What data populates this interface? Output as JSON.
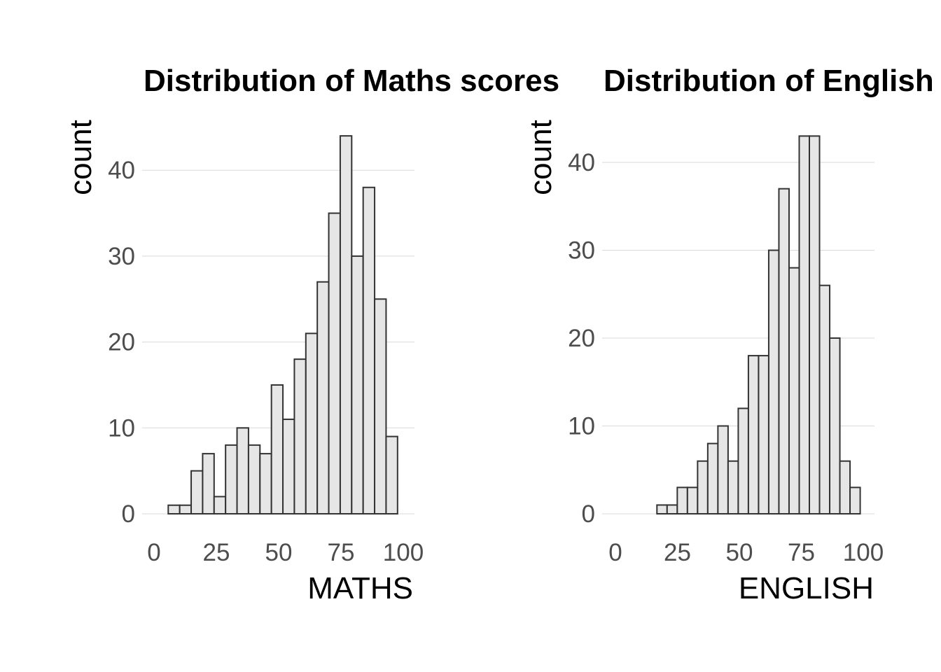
{
  "chart_data": [
    {
      "type": "bar",
      "title": "Distribution of Maths scores",
      "xlabel": "MATHS",
      "ylabel": "count",
      "xlim": [
        0,
        100
      ],
      "ylim": [
        0,
        45
      ],
      "x_ticks": [
        0,
        25,
        50,
        75,
        100
      ],
      "y_ticks": [
        0,
        10,
        20,
        30,
        40
      ],
      "bin_width": 4.6,
      "bin_centers": [
        8.0,
        12.6,
        17.2,
        21.8,
        26.4,
        31.0,
        35.6,
        40.2,
        44.8,
        49.4,
        54.0,
        58.6,
        63.2,
        67.8,
        72.4,
        77.0,
        81.6,
        86.2,
        90.8,
        95.4
      ],
      "values": [
        1,
        1,
        5,
        7,
        2,
        8,
        10,
        8,
        7,
        15,
        11,
        18,
        21,
        27,
        35,
        44,
        30,
        38,
        25,
        9
      ],
      "grid": true,
      "colors": {
        "fill": "#e6e6e6",
        "outline": "#333333",
        "grid": "#d9d9d9"
      }
    },
    {
      "type": "bar",
      "title": "Distribution of English scores",
      "xlabel": "ENGLISH",
      "ylabel": "count",
      "xlim": [
        0,
        100
      ],
      "ylim": [
        0,
        44
      ],
      "x_ticks": [
        0,
        25,
        50,
        75,
        100
      ],
      "y_ticks": [
        0,
        10,
        20,
        30,
        40
      ],
      "bin_width": 4.1,
      "bin_centers": [
        18.8,
        22.9,
        27.0,
        31.1,
        35.2,
        39.3,
        43.4,
        47.5,
        51.6,
        55.7,
        59.8,
        63.9,
        68.0,
        72.1,
        76.2,
        80.3,
        84.4,
        88.5,
        92.6,
        96.7
      ],
      "values": [
        1,
        1,
        3,
        3,
        6,
        8,
        10,
        6,
        12,
        18,
        18,
        30,
        37,
        28,
        43,
        43,
        26,
        20,
        6,
        3
      ],
      "grid": true,
      "colors": {
        "fill": "#e6e6e6",
        "outline": "#333333",
        "grid": "#d9d9d9"
      }
    }
  ]
}
